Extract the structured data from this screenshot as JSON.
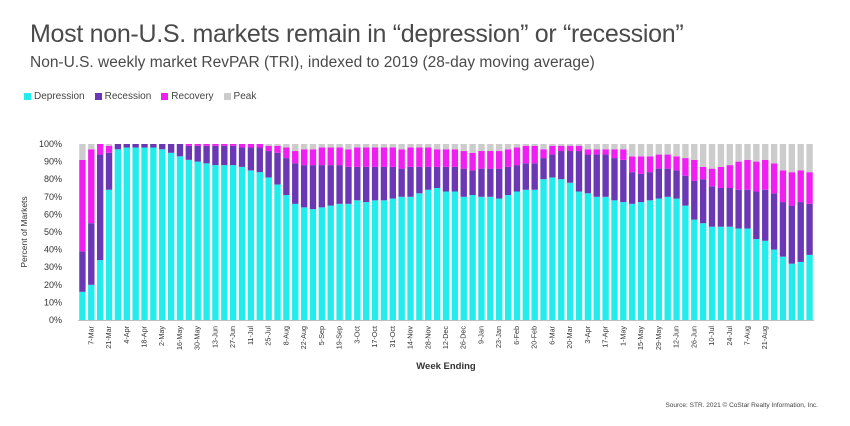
{
  "title": "Most non-U.S. markets remain in “depression” or “recession”",
  "subtitle": "Non-U.S. weekly market RevPAR (TRI), indexed to 2019 (28-day moving average)",
  "source": "Source: STR. 2021 © CoStar Realty Information, Inc.",
  "colors": {
    "depression": "#22ECEC",
    "recession": "#6A38B4",
    "recovery": "#F01EF2",
    "peak": "#CCCCCC"
  },
  "chart_data": {
    "type": "bar",
    "stacked": true,
    "xlabel": "Week Ending",
    "ylabel": "Percent of Markets",
    "ylim": [
      0,
      100
    ],
    "y_ticks": [
      "0%",
      "10%",
      "20%",
      "30%",
      "40%",
      "50%",
      "60%",
      "70%",
      "80%",
      "90%",
      "100%"
    ],
    "grid": false,
    "legend_position": "top-left",
    "x_tick_labels": [
      "7-Mar",
      "21-Mar",
      "4-Apr",
      "18-Apr",
      "2-May",
      "16-May",
      "30-May",
      "13-Jun",
      "27-Jun",
      "11-Jul",
      "25-Jul",
      "8-Aug",
      "22-Aug",
      "5-Sep",
      "19-Sep",
      "3-Oct",
      "17-Oct",
      "31-Oct",
      "14-Nov",
      "28-Nov",
      "12-Dec",
      "26-Dec",
      "9-Jan",
      "23-Jan",
      "6-Feb",
      "20-Feb",
      "6-Mar",
      "20-Mar",
      "3-Apr",
      "17-Apr",
      "1-May",
      "15-May",
      "29-May",
      "12-Jun",
      "26-Jun",
      "10-Jul",
      "24-Jul",
      "7-Aug",
      "21-Aug"
    ],
    "series": [
      {
        "name": "Depression",
        "values": [
          16,
          20,
          34,
          74,
          97,
          98,
          98,
          98,
          98,
          97,
          95,
          93,
          91,
          90,
          89,
          88,
          88,
          88,
          87,
          85,
          84,
          81,
          77,
          71,
          66,
          64,
          63,
          64,
          65,
          66,
          66,
          68,
          67,
          68,
          68,
          69,
          70,
          70,
          72,
          74,
          75,
          73,
          73,
          70,
          71,
          70,
          70,
          69,
          71,
          73,
          74,
          74,
          80,
          81,
          80,
          78,
          73,
          72,
          70,
          70,
          68,
          67,
          66,
          67,
          68,
          69,
          70,
          69,
          65,
          57,
          55,
          53,
          53,
          53,
          52,
          52,
          46,
          45,
          40,
          36,
          32,
          33,
          37
        ]
      },
      {
        "name": "Recession",
        "values": [
          23,
          35,
          60,
          21,
          3,
          2,
          2,
          2,
          2,
          3,
          5,
          7,
          8,
          9,
          10,
          11,
          11,
          11,
          11,
          13,
          14,
          15,
          18,
          21,
          23,
          24,
          25,
          24,
          23,
          22,
          21,
          19,
          20,
          19,
          19,
          18,
          16,
          17,
          15,
          13,
          12,
          14,
          14,
          16,
          14,
          16,
          16,
          17,
          16,
          15,
          15,
          15,
          12,
          13,
          16,
          18,
          23,
          22,
          24,
          24,
          24,
          24,
          18,
          16,
          16,
          17,
          16,
          16,
          17,
          22,
          25,
          23,
          22,
          22,
          22,
          22,
          27,
          29,
          32,
          31,
          33,
          34,
          29
        ]
      },
      {
        "name": "Recovery",
        "values": [
          52,
          42,
          6,
          4,
          0,
          0,
          0,
          0,
          0,
          0,
          0,
          0,
          1,
          1,
          1,
          1,
          1,
          1,
          2,
          2,
          2,
          3,
          4,
          6,
          7,
          9,
          9,
          10,
          10,
          10,
          10,
          11,
          11,
          11,
          11,
          11,
          11,
          11,
          11,
          11,
          10,
          10,
          10,
          10,
          10,
          10,
          10,
          10,
          10,
          10,
          10,
          10,
          5,
          5,
          3,
          3,
          3,
          3,
          3,
          3,
          5,
          6,
          9,
          10,
          9,
          8,
          8,
          8,
          10,
          12,
          7,
          10,
          12,
          13,
          16,
          17,
          17,
          17,
          17,
          18,
          19,
          18,
          18
        ]
      },
      {
        "name": "Peak",
        "values": [
          9,
          3,
          0,
          1,
          0,
          0,
          0,
          0,
          0,
          0,
          0,
          0,
          0,
          0,
          0,
          0,
          0,
          0,
          0,
          0,
          0,
          1,
          1,
          2,
          4,
          3,
          3,
          2,
          2,
          2,
          3,
          2,
          2,
          2,
          2,
          2,
          3,
          2,
          2,
          2,
          3,
          3,
          3,
          4,
          5,
          4,
          4,
          4,
          3,
          2,
          1,
          1,
          3,
          1,
          1,
          1,
          1,
          3,
          3,
          3,
          3,
          3,
          7,
          7,
          7,
          6,
          6,
          7,
          8,
          9,
          13,
          14,
          13,
          12,
          10,
          9,
          10,
          9,
          11,
          15,
          16,
          15,
          16
        ]
      }
    ]
  }
}
